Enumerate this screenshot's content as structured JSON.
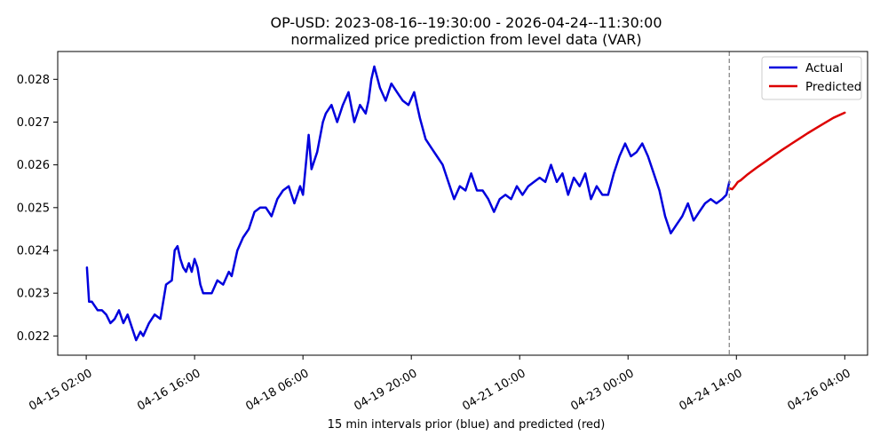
{
  "chart_data": {
    "type": "line",
    "title": "OP-USD: 2023-08-16--19:30:00 - 2026-04-24--11:30:00",
    "subtitle": "normalized price prediction from level data (VAR)",
    "xlabel": "15 min intervals prior (blue) and predicted (red)",
    "ylabel": "",
    "x_axis_type": "datetime",
    "xlim": [
      "2026-04-14 16:00",
      "2026-04-26 12:00"
    ],
    "ylim": [
      0.02155,
      0.02865
    ],
    "x_ticks": [
      {
        "value": "2026-04-15 02:00",
        "label": "04-15 02:00"
      },
      {
        "value": "2026-04-16 16:00",
        "label": "04-16 16:00"
      },
      {
        "value": "2026-04-18 06:00",
        "label": "04-18 06:00"
      },
      {
        "value": "2026-04-19 20:00",
        "label": "04-19 20:00"
      },
      {
        "value": "2026-04-21 10:00",
        "label": "04-21 10:00"
      },
      {
        "value": "2026-04-23 00:00",
        "label": "04-23 00:00"
      },
      {
        "value": "2026-04-24 14:00",
        "label": "04-24 14:00"
      },
      {
        "value": "2026-04-26 04:00",
        "label": "04-26 04:00"
      }
    ],
    "y_ticks": [
      {
        "value": 0.022,
        "label": "0.022"
      },
      {
        "value": 0.023,
        "label": "0.023"
      },
      {
        "value": 0.024,
        "label": "0.024"
      },
      {
        "value": 0.025,
        "label": "0.025"
      },
      {
        "value": 0.026,
        "label": "0.026"
      },
      {
        "value": 0.027,
        "label": "0.027"
      },
      {
        "value": 0.028,
        "label": "0.028"
      }
    ],
    "grid": false,
    "legend_position": "top-right",
    "vline": {
      "x": "2026-04-24 11:30",
      "style": "dashed",
      "color": "#808080"
    },
    "series": [
      {
        "name": "Actual",
        "color": "#0000dd",
        "x": [
          "2026-04-15 02:15",
          "2026-04-15 03:00",
          "2026-04-15 04:00",
          "2026-04-15 06:00",
          "2026-04-15 07:30",
          "2026-04-15 09:00",
          "2026-04-15 10:30",
          "2026-04-15 12:00",
          "2026-04-15 13:30",
          "2026-04-15 15:00",
          "2026-04-15 16:30",
          "2026-04-15 18:00",
          "2026-04-15 19:30",
          "2026-04-15 21:00",
          "2026-04-15 22:00",
          "2026-04-16 00:00",
          "2026-04-16 02:00",
          "2026-04-16 04:00",
          "2026-04-16 06:00",
          "2026-04-16 08:00",
          "2026-04-16 09:00",
          "2026-04-16 10:00",
          "2026-04-16 11:00",
          "2026-04-16 12:00",
          "2026-04-16 13:00",
          "2026-04-16 14:00",
          "2026-04-16 15:00",
          "2026-04-16 16:00",
          "2026-04-16 17:00",
          "2026-04-16 18:00",
          "2026-04-16 19:00",
          "2026-04-16 20:00",
          "2026-04-16 22:00",
          "2026-04-17 00:00",
          "2026-04-17 02:00",
          "2026-04-17 04:00",
          "2026-04-17 05:00",
          "2026-04-17 07:00",
          "2026-04-17 09:00",
          "2026-04-17 11:00",
          "2026-04-17 13:00",
          "2026-04-17 15:00",
          "2026-04-17 17:00",
          "2026-04-17 19:00",
          "2026-04-17 21:00",
          "2026-04-17 23:00",
          "2026-04-18 01:00",
          "2026-04-18 03:00",
          "2026-04-18 05:00",
          "2026-04-18 06:00",
          "2026-04-18 08:00",
          "2026-04-18 09:00",
          "2026-04-18 11:00",
          "2026-04-18 13:00",
          "2026-04-18 14:00",
          "2026-04-18 16:00",
          "2026-04-18 18:00",
          "2026-04-18 20:00",
          "2026-04-18 22:00",
          "2026-04-19 00:00",
          "2026-04-19 02:00",
          "2026-04-19 04:00",
          "2026-04-19 05:00",
          "2026-04-19 06:00",
          "2026-04-19 07:00",
          "2026-04-19 09:00",
          "2026-04-19 11:00",
          "2026-04-19 13:00",
          "2026-04-19 15:00",
          "2026-04-19 17:00",
          "2026-04-19 19:00",
          "2026-04-19 21:00",
          "2026-04-19 23:00",
          "2026-04-20 01:00",
          "2026-04-20 03:00",
          "2026-04-20 05:00",
          "2026-04-20 07:00",
          "2026-04-20 09:00",
          "2026-04-20 11:00",
          "2026-04-20 13:00",
          "2026-04-20 15:00",
          "2026-04-20 17:00",
          "2026-04-20 19:00",
          "2026-04-20 21:00",
          "2026-04-20 23:00",
          "2026-04-21 01:00",
          "2026-04-21 03:00",
          "2026-04-21 05:00",
          "2026-04-21 07:00",
          "2026-04-21 09:00",
          "2026-04-21 11:00",
          "2026-04-21 13:00",
          "2026-04-21 15:00",
          "2026-04-21 17:00",
          "2026-04-21 19:00",
          "2026-04-21 21:00",
          "2026-04-21 23:00",
          "2026-04-22 01:00",
          "2026-04-22 03:00",
          "2026-04-22 05:00",
          "2026-04-22 07:00",
          "2026-04-22 09:00",
          "2026-04-22 11:00",
          "2026-04-22 13:00",
          "2026-04-22 15:00",
          "2026-04-22 17:00",
          "2026-04-22 19:00",
          "2026-04-22 21:00",
          "2026-04-22 23:00",
          "2026-04-23 01:00",
          "2026-04-23 03:00",
          "2026-04-23 05:00",
          "2026-04-23 07:00",
          "2026-04-23 09:00",
          "2026-04-23 11:00",
          "2026-04-23 13:00",
          "2026-04-23 15:00",
          "2026-04-23 17:00",
          "2026-04-23 19:00",
          "2026-04-23 21:00",
          "2026-04-23 23:00",
          "2026-04-24 01:00",
          "2026-04-24 03:00",
          "2026-04-24 05:00",
          "2026-04-24 07:00",
          "2026-04-24 09:00",
          "2026-04-24 10:30",
          "2026-04-24 11:30"
        ],
        "values": [
          0.0236,
          0.0228,
          0.0228,
          0.0226,
          0.0226,
          0.0225,
          0.0223,
          0.0224,
          0.0226,
          0.0223,
          0.0225,
          0.0222,
          0.0219,
          0.0221,
          0.022,
          0.0223,
          0.0225,
          0.0224,
          0.0232,
          0.0233,
          0.024,
          0.0241,
          0.0238,
          0.0236,
          0.0235,
          0.0237,
          0.0235,
          0.0238,
          0.0236,
          0.0232,
          0.023,
          0.023,
          0.023,
          0.0233,
          0.0232,
          0.0235,
          0.0234,
          0.024,
          0.0243,
          0.0245,
          0.0249,
          0.025,
          0.025,
          0.0248,
          0.0252,
          0.0254,
          0.0255,
          0.0251,
          0.0255,
          0.0253,
          0.0267,
          0.0259,
          0.0263,
          0.027,
          0.0272,
          0.0274,
          0.027,
          0.0274,
          0.0277,
          0.027,
          0.0274,
          0.0272,
          0.0275,
          0.028,
          0.0283,
          0.0278,
          0.0275,
          0.0279,
          0.0277,
          0.0275,
          0.0274,
          0.0277,
          0.0271,
          0.0266,
          0.0264,
          0.0262,
          0.026,
          0.0256,
          0.0252,
          0.0255,
          0.0254,
          0.0258,
          0.0254,
          0.0254,
          0.0252,
          0.0249,
          0.0252,
          0.0253,
          0.0252,
          0.0255,
          0.0253,
          0.0255,
          0.0256,
          0.0257,
          0.0256,
          0.026,
          0.0256,
          0.0258,
          0.0253,
          0.0257,
          0.0255,
          0.0258,
          0.0252,
          0.0255,
          0.0253,
          0.0253,
          0.0258,
          0.0262,
          0.0265,
          0.0262,
          0.0263,
          0.0265,
          0.0262,
          0.0258,
          0.0254,
          0.0248,
          0.0244,
          0.0246,
          0.0248,
          0.0251,
          0.0247,
          0.0249,
          0.0251,
          0.0252,
          0.0251,
          0.0252,
          0.0253,
          0.0256
        ]
      },
      {
        "name": "Predicted",
        "color": "#dd0000",
        "x": [
          "2026-04-24 11:30",
          "2026-04-24 12:30",
          "2026-04-24 13:30",
          "2026-04-24 14:30",
          "2026-04-24 15:30",
          "2026-04-24 18:00",
          "2026-04-24 21:00",
          "2026-04-25 00:00",
          "2026-04-25 03:00",
          "2026-04-25 06:00",
          "2026-04-25 09:00",
          "2026-04-25 12:00",
          "2026-04-25 15:00",
          "2026-04-25 18:00",
          "2026-04-25 21:00",
          "2026-04-26 00:00",
          "2026-04-26 04:00"
        ],
        "values": [
          0.02545,
          0.02543,
          0.02551,
          0.0256,
          0.02564,
          0.02578,
          0.02593,
          0.02607,
          0.02621,
          0.02635,
          0.02648,
          0.02661,
          0.02674,
          0.02686,
          0.02698,
          0.0271,
          0.02722
        ]
      }
    ]
  }
}
